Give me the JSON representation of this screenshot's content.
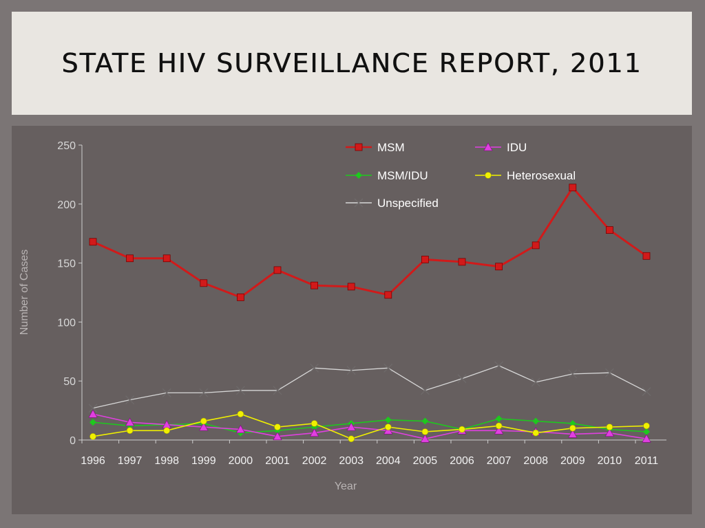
{
  "slide": {
    "title": "STATE HIV SURVEILLANCE REPORT, 2011"
  },
  "colors": {
    "title_bg": "#e9e6e1",
    "page_bg": "#7b7575",
    "chart_bg": "#665f5f"
  },
  "chart_data": {
    "type": "line",
    "xlabel": "Year",
    "ylabel": "Number of Cases",
    "ylim": [
      0,
      250
    ],
    "yticks": [
      0,
      50,
      100,
      150,
      200,
      250
    ],
    "grid": false,
    "legend_position": "top-right",
    "x": [
      "1996",
      "1997",
      "1998",
      "1999",
      "2000",
      "2001",
      "2002",
      "2003",
      "2004",
      "2005",
      "2006",
      "2007",
      "2008",
      "2009",
      "2010",
      "2011"
    ],
    "series": [
      {
        "name": "MSM",
        "color": "#d11a1a",
        "marker": "square",
        "values": [
          168,
          154,
          154,
          133,
          121,
          144,
          131,
          130,
          123,
          153,
          151,
          147,
          165,
          214,
          178,
          156
        ]
      },
      {
        "name": "IDU",
        "color": "#e040e0",
        "marker": "triangle",
        "values": [
          22,
          15,
          13,
          11,
          9,
          3,
          6,
          11,
          8,
          1,
          8,
          8,
          7,
          5,
          6,
          1
        ]
      },
      {
        "name": "MSM/IDU",
        "color": "#1ec81e",
        "marker": "diamond",
        "values": [
          15,
          12,
          13,
          14,
          6,
          8,
          11,
          14,
          17,
          16,
          9,
          18,
          16,
          14,
          9,
          7
        ]
      },
      {
        "name": "Heterosexual",
        "color": "#f0f000",
        "marker": "circle",
        "values": [
          3,
          8,
          8,
          16,
          22,
          11,
          14,
          1,
          11,
          7,
          9,
          12,
          6,
          10,
          11,
          12
        ]
      },
      {
        "name": "Unspecified",
        "color": "#d7d7d7",
        "marker": "x",
        "values": [
          27,
          34,
          40,
          40,
          42,
          42,
          61,
          59,
          61,
          42,
          52,
          63,
          49,
          56,
          57,
          41
        ]
      }
    ]
  }
}
